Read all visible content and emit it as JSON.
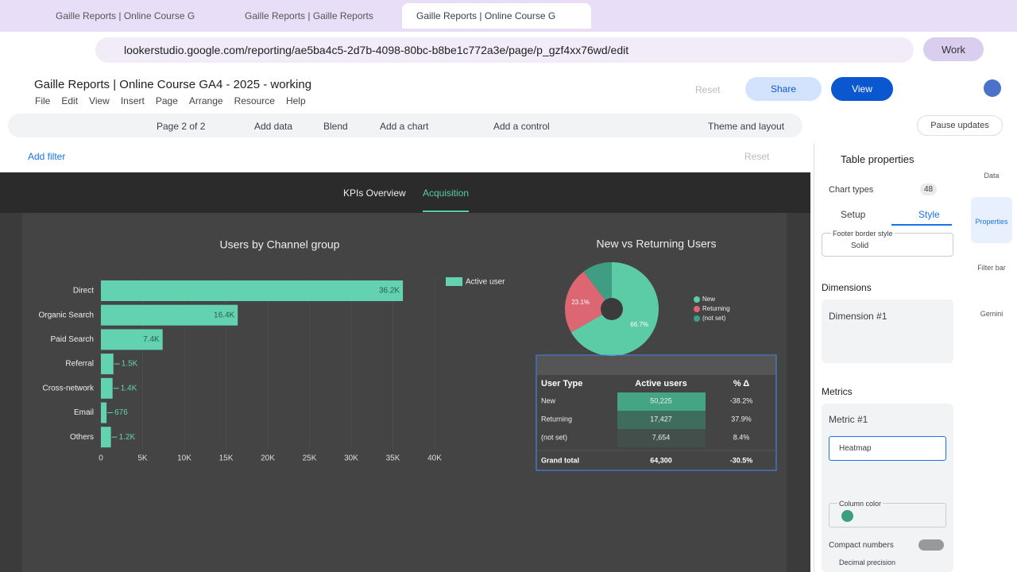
{
  "browser": {
    "tabs": [
      "Gaille Reports | Online Course G",
      "Gaille Reports | Gaille Reports",
      "Gaille Reports | Online Course G"
    ],
    "url": "lookerstudio.google.com/reporting/ae5ba4c5-2d7b-4098-80bc-b8be1c772a3e/page/p_gzf4xx76wd/edit",
    "profile": "Work"
  },
  "app": {
    "title": "Gaille Reports | Online Course GA4 - 2025 - working",
    "menus": [
      "File",
      "Edit",
      "View",
      "Insert",
      "Page",
      "Arrange",
      "Resource",
      "Help"
    ],
    "reset": "Reset",
    "share": "Share",
    "view": "View"
  },
  "toolbar": {
    "page": "Page 2 of 2",
    "add_data": "Add data",
    "blend": "Blend",
    "add_chart": "Add a chart",
    "add_control": "Add a control",
    "theme": "Theme and layout",
    "pause": "Pause updates"
  },
  "filter_bar": {
    "add_filter": "Add filter",
    "reset": "Reset"
  },
  "report_tabs": [
    "KPIs Overview",
    "Acquisition"
  ],
  "bar_chart": {
    "type": "bar",
    "title": "Users by Channel group",
    "categories": [
      "Direct",
      "Organic Search",
      "Paid Search",
      "Referral",
      "Cross-network",
      "Email",
      "Others"
    ],
    "series": [
      {
        "name": "Active user",
        "color": "#63d2b0",
        "values": [
          36200,
          16400,
          7400,
          1500,
          1400,
          676,
          1200
        ],
        "value_labels": [
          "36.2K",
          "16.4K",
          "7.4K",
          "1.5K",
          "1.4K",
          "676",
          "1.2K"
        ]
      }
    ],
    "xlim": [
      0,
      40000
    ],
    "xticks": [
      0,
      {
        "value": 5000,
        "label": "5K"
      },
      {
        "value": 10000,
        "label": "10K"
      },
      {
        "value": 15000,
        "label": "15K"
      },
      {
        "value": 20000,
        "label": "20K"
      },
      {
        "value": 25000,
        "label": "25K"
      },
      {
        "value": 30000,
        "label": "30K"
      },
      {
        "value": 35000,
        "label": "35K"
      },
      {
        "value": 40000,
        "label": "40K"
      }
    ],
    "legend": "top-right"
  },
  "pie_chart": {
    "type": "pie",
    "title": "New vs Returning Users",
    "categories": [
      "New",
      "Returning",
      "(not set)"
    ],
    "values": [
      66.7,
      23.1,
      10.2
    ],
    "value_labels": [
      "66.7%",
      "23.1%",
      null
    ],
    "colors": [
      "#5ccca6",
      "#dd6673",
      "#3f9d83"
    ]
  },
  "table": {
    "headers": [
      "User Type",
      "Active users",
      "% Δ"
    ],
    "rows": [
      [
        "New",
        "50,225",
        "-38.2%"
      ],
      [
        "Returning",
        "17,427",
        "37.9%"
      ],
      [
        "(not set)",
        "7,654",
        "8.4%"
      ]
    ],
    "total": [
      "Grand total",
      "64,300",
      "-30.5%"
    ]
  },
  "panel": {
    "title": "Table properties",
    "chart_types": "Chart types",
    "chart_count": "48",
    "tabs": [
      "Setup",
      "Style"
    ],
    "footer_border": "Footer border style",
    "footer_value": "Solid",
    "dimensions": "Dimensions",
    "dimension1": "Dimension #1",
    "metrics": "Metrics",
    "metric1": "Metric #1",
    "metric_type": "Heatmap",
    "column_color": "Column color",
    "compact": "Compact numbers",
    "decimal": "Decimal precision"
  },
  "rail": [
    "Data",
    "Properties",
    "Filter bar",
    "Gemini"
  ]
}
